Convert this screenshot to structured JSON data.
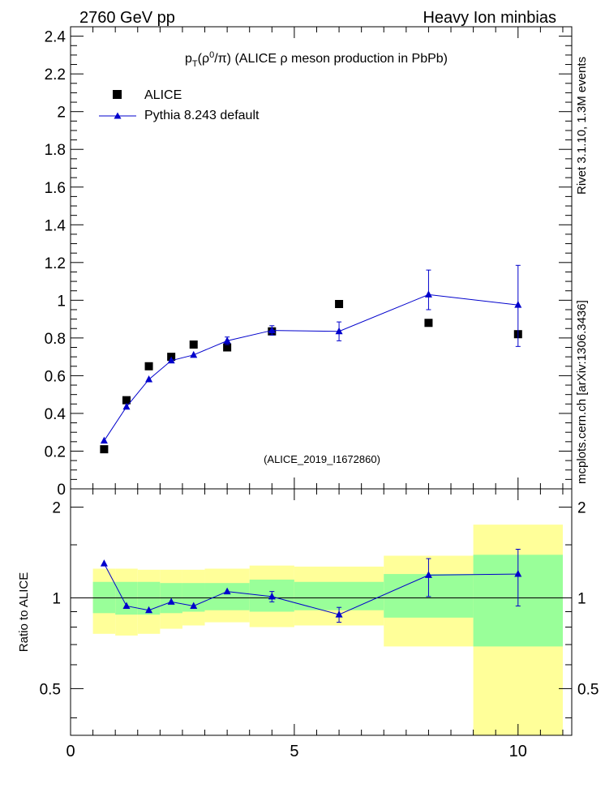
{
  "header": {
    "left": "2760 GeV pp",
    "right": "Heavy Ion minbias"
  },
  "side_labels": {
    "rivet": "Rivet 3.1.10, 1.3M events",
    "source": "mcplots.cern.ch [arXiv:1306.3436]"
  },
  "watermark": "(ALICE_2019_I1672860)",
  "chart_data": [
    {
      "type": "scatter",
      "title": "p_T(ρ⁰/π) (ALICE ρ meson production in PbPb)",
      "title_parts": {
        "p": "p",
        "sub": "T",
        "paren_open": "(ρ",
        "sup": "0",
        "rest": "/π) (ALICE ρ meson production in PbPb)"
      },
      "xlim": [
        0,
        11.2
      ],
      "ylim": [
        0,
        2.45
      ],
      "y_ticks": [
        0,
        0.2,
        0.4,
        0.6,
        0.8,
        1,
        1.2,
        1.4,
        1.6,
        1.8,
        2,
        2.2,
        2.4
      ],
      "y_tick_labels": [
        "0",
        "0.2",
        "0.4",
        "0.6",
        "0.8",
        "1",
        "1.2",
        "1.4",
        "1.6",
        "1.8",
        "2",
        "2.2",
        "2.4"
      ],
      "grid": false,
      "legend_position": "top-left",
      "series": [
        {
          "name": "ALICE",
          "marker": "square",
          "color": "#000000",
          "x": [
            0.75,
            1.25,
            1.75,
            2.25,
            2.75,
            3.5,
            4.5,
            6.0,
            8.0,
            10.0
          ],
          "y": [
            0.21,
            0.47,
            0.65,
            0.7,
            0.765,
            0.75,
            0.835,
            0.98,
            0.88,
            0.82
          ]
        },
        {
          "name": "Pythia 8.243 default",
          "marker": "triangle",
          "color": "#0000cc",
          "x": [
            0.75,
            1.25,
            1.75,
            2.25,
            2.75,
            3.5,
            4.5,
            6.0,
            8.0,
            10.0
          ],
          "y": [
            0.255,
            0.435,
            0.58,
            0.68,
            0.71,
            0.785,
            0.84,
            0.835,
            1.03,
            0.975
          ],
          "err_low": [
            0,
            0,
            0,
            0,
            0,
            0.02,
            0.025,
            0.05,
            0.08,
            0.22
          ],
          "err_high": [
            0,
            0,
            0,
            0,
            0,
            0.02,
            0.025,
            0.05,
            0.13,
            0.21
          ]
        }
      ]
    },
    {
      "type": "line",
      "title": "",
      "ylabel": "Ratio to ALICE",
      "log_scale_y": true,
      "xlim": [
        0,
        11.2
      ],
      "ylim": [
        0.35,
        2.3
      ],
      "x_ticks": [
        0,
        5,
        10
      ],
      "x_tick_labels": [
        "0",
        "5",
        "10"
      ],
      "y_ticks": [
        0.5,
        1,
        2
      ],
      "y_tick_labels": [
        "0.5",
        "1",
        "2"
      ],
      "grid": false,
      "bands": {
        "bin_edges": [
          0.5,
          1.0,
          1.5,
          2.0,
          2.5,
          3.0,
          4.0,
          5.0,
          7.0,
          9.0,
          11.0
        ],
        "yellow_low": [
          0.76,
          0.75,
          0.76,
          0.79,
          0.81,
          0.83,
          0.8,
          0.81,
          0.69,
          0.35
        ],
        "yellow_high": [
          1.25,
          1.25,
          1.24,
          1.24,
          1.24,
          1.25,
          1.28,
          1.27,
          1.38,
          1.75
        ],
        "green_low": [
          0.89,
          0.88,
          0.88,
          0.89,
          0.9,
          0.91,
          0.9,
          0.91,
          0.86,
          0.69
        ],
        "green_high": [
          1.13,
          1.13,
          1.13,
          1.12,
          1.12,
          1.12,
          1.15,
          1.13,
          1.2,
          1.39
        ],
        "yellow_color": "#ffff99",
        "green_color": "#99ff99"
      },
      "series": [
        {
          "name": "Pythia 8.243 default",
          "color": "#0000cc",
          "x": [
            0.75,
            1.25,
            1.75,
            2.25,
            2.75,
            3.5,
            4.5,
            6.0,
            8.0,
            10.0
          ],
          "y": [
            1.3,
            0.94,
            0.91,
            0.97,
            0.94,
            1.05,
            1.01,
            0.88,
            1.19,
            1.2
          ],
          "err_low": [
            0,
            0,
            0,
            0,
            0,
            0,
            0.04,
            0.05,
            0.18,
            0.26
          ],
          "err_high": [
            0,
            0,
            0,
            0,
            0,
            0,
            0.04,
            0.05,
            0.16,
            0.25
          ]
        }
      ]
    }
  ]
}
